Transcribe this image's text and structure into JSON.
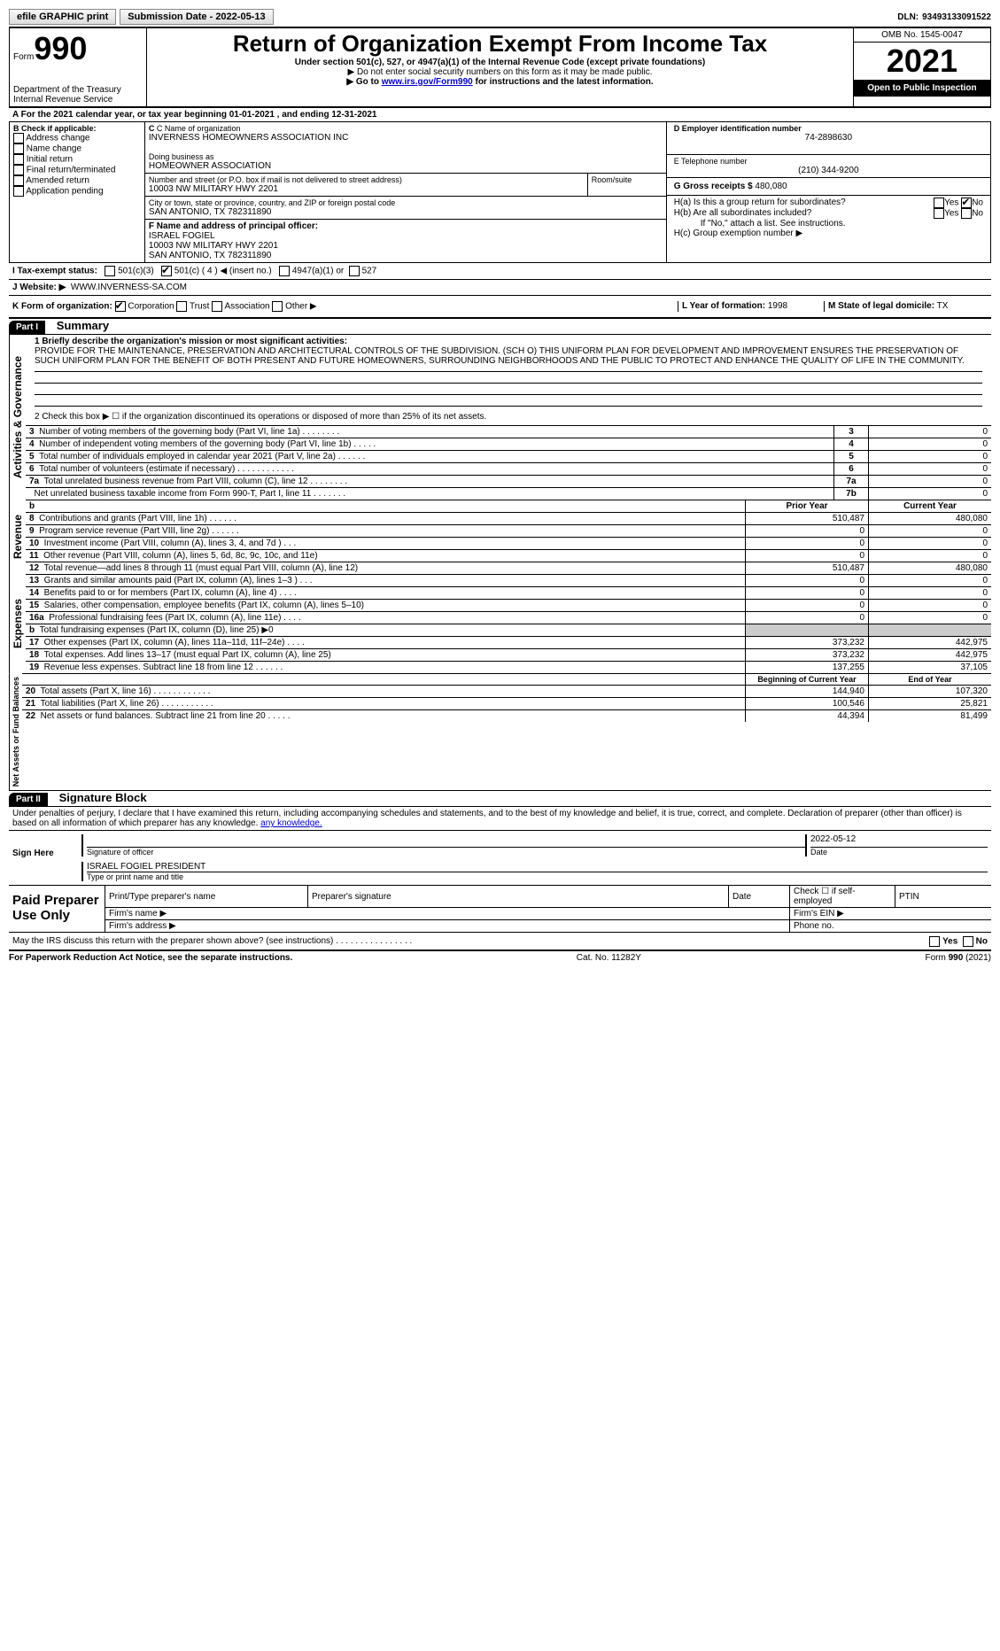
{
  "topbar": {
    "efile": "efile GRAPHIC print",
    "submission": "Submission Date - 2022-05-13",
    "dln_label": "DLN:",
    "dln": "93493133091522"
  },
  "header": {
    "form_label": "Form",
    "form_no": "990",
    "dept": "Department of the Treasury\nInternal Revenue Service",
    "title": "Return of Organization Exempt From Income Tax",
    "subtitle": "Under section 501(c), 527, or 4947(a)(1) of the Internal Revenue Code (except private foundations)",
    "arrow1": "▶ Do not enter social security numbers on this form as it may be made public.",
    "arrow2_pre": "▶ Go to ",
    "arrow2_link": "www.irs.gov/Form990",
    "arrow2_post": " for instructions and the latest information.",
    "omb": "OMB No. 1545-0047",
    "year": "2021",
    "open": "Open to Public Inspection"
  },
  "A": {
    "line": "For the 2021 calendar year, or tax year beginning 01-01-2021     , and ending 12-31-2021"
  },
  "B": {
    "label": "B Check if applicable:",
    "items": [
      "Address change",
      "Name change",
      "Initial return",
      "Final return/terminated",
      "Amended return",
      "Application pending"
    ]
  },
  "C": {
    "name_label": "C Name of organization",
    "name": "INVERNESS HOMEOWNERS ASSOCIATION INC",
    "dba_label": "Doing business as",
    "dba": "HOMEOWNER ASSOCIATION",
    "street_label": "Number and street (or P.O. box if mail is not delivered to street address)",
    "street": "10003 NW MILITARY HWY 2201",
    "room_label": "Room/suite",
    "city_label": "City or town, state or province, country, and ZIP or foreign postal code",
    "city": "SAN ANTONIO, TX  782311890"
  },
  "D": {
    "label": "D Employer identification number",
    "value": "74-2898630"
  },
  "E": {
    "label": "E Telephone number",
    "value": "(210) 344-9200"
  },
  "G": {
    "label": "G Gross receipts $",
    "value": "480,080"
  },
  "F": {
    "label": "F Name and address of principal officer:",
    "name": "ISRAEL FOGIEL",
    "addr1": "10003 NW MILITARY HWY 2201",
    "addr2": "SAN ANTONIO, TX  782311890"
  },
  "H": {
    "a": "H(a)  Is this a group return for subordinates?",
    "b": "H(b)  Are all subordinates included?",
    "b_note": "If \"No,\" attach a list. See instructions.",
    "c": "H(c)  Group exemption number ▶",
    "yes": "Yes",
    "no": "No"
  },
  "I": {
    "label": "I   Tax-exempt status:",
    "c3": "501(c)(3)",
    "c": "501(c) ( 4 ) ◀ (insert no.)",
    "a": "4947(a)(1) or",
    "s": "527"
  },
  "J": {
    "label": "J   Website: ▶",
    "value": "WWW.INVERNESS-SA.COM"
  },
  "K": {
    "label": "K Form of organization:",
    "corp": "Corporation",
    "trust": "Trust",
    "assoc": "Association",
    "other": "Other ▶"
  },
  "L": {
    "label": "L Year of formation:",
    "value": "1998"
  },
  "M": {
    "label": "M State of legal domicile:",
    "value": "TX"
  },
  "part1": {
    "title": "Part I",
    "name": "Summary",
    "q1_label": "1  Briefly describe the organization's mission or most significant activities:",
    "q1_text": "PROVIDE FOR THE MAINTENANCE, PRESERVATION AND ARCHITECTURAL CONTROLS OF THE SUBDIVISION. (SCH O) THIS UNIFORM PLAN FOR DEVELOPMENT AND IMPROVEMENT ENSURES THE PRESERVATION OF SUCH UNIFORM PLAN FOR THE BENEFIT OF BOTH PRESENT AND FUTURE HOMEOWNERS, SURROUNDING NEIGHBORHOODS AND THE PUBLIC TO PROTECT AND ENHANCE THE QUALITY OF LIFE IN THE COMMUNITY.",
    "q2": "2    Check this box ▶ ☐  if the organization discontinued its operations or disposed of more than 25% of its net assets.",
    "rows_gov": [
      {
        "n": "3",
        "t": "Number of voting members of the governing body (Part VI, line 1a)   .    .    .    .    .    .    .    .",
        "rn": "3",
        "v": "0"
      },
      {
        "n": "4",
        "t": "Number of independent voting members of the governing body (Part VI, line 1b)   .    .    .    .    .",
        "rn": "4",
        "v": "0"
      },
      {
        "n": "5",
        "t": "Total number of individuals employed in calendar year 2021 (Part V, line 2a)   .    .    .    .    .    .",
        "rn": "5",
        "v": "0"
      },
      {
        "n": "6",
        "t": "Total number of volunteers (estimate if necessary)   .    .    .    .    .    .    .    .    .    .    .    .",
        "rn": "6",
        "v": "0"
      },
      {
        "n": "7a",
        "t": "Total unrelated business revenue from Part VIII, column (C), line 12   .    .    .    .    .    .    .    .",
        "rn": "7a",
        "v": "0"
      },
      {
        "n": "",
        "t": "Net unrelated business taxable income from Form 990-T, Part I, line 11   .    .    .    .    .    .    .",
        "rn": "7b",
        "v": "0"
      }
    ],
    "col_prior": "Prior Year",
    "col_curr": "Current Year",
    "rows_rev": [
      {
        "n": "8",
        "t": "Contributions and grants (Part VIII, line 1h)   .    .    .    .    .    .",
        "p": "510,487",
        "c": "480,080"
      },
      {
        "n": "9",
        "t": "Program service revenue (Part VIII, line 2g)   .    .    .    .    .    .",
        "p": "0",
        "c": "0"
      },
      {
        "n": "10",
        "t": "Investment income (Part VIII, column (A), lines 3, 4, and 7d )   .    .    .",
        "p": "0",
        "c": "0"
      },
      {
        "n": "11",
        "t": "Other revenue (Part VIII, column (A), lines 5, 6d, 8c, 9c, 10c, and 11e)",
        "p": "0",
        "c": "0"
      },
      {
        "n": "12",
        "t": "Total revenue—add lines 8 through 11 (must equal Part VIII, column (A), line 12)",
        "p": "510,487",
        "c": "480,080"
      }
    ],
    "rows_exp": [
      {
        "n": "13",
        "t": "Grants and similar amounts paid (Part IX, column (A), lines 1–3 )  .    .    .",
        "p": "0",
        "c": "0"
      },
      {
        "n": "14",
        "t": "Benefits paid to or for members (Part IX, column (A), line 4)   .    .    .    .",
        "p": "0",
        "c": "0"
      },
      {
        "n": "15",
        "t": "Salaries, other compensation, employee benefits (Part IX, column (A), lines 5–10)",
        "p": "0",
        "c": "0"
      },
      {
        "n": "16a",
        "t": "Professional fundraising fees (Part IX, column (A), line 11e)   .    .    .    .",
        "p": "0",
        "c": "0"
      },
      {
        "n": "b",
        "t": "Total fundraising expenses (Part IX, column (D), line 25) ▶0",
        "p": "",
        "c": "",
        "shade": true
      },
      {
        "n": "17",
        "t": "Other expenses (Part IX, column (A), lines 11a–11d, 11f–24e)   .    .    .    .",
        "p": "373,232",
        "c": "442,975"
      },
      {
        "n": "18",
        "t": "Total expenses. Add lines 13–17 (must equal Part IX, column (A), line 25)",
        "p": "373,232",
        "c": "442,975"
      },
      {
        "n": "19",
        "t": "Revenue less expenses. Subtract line 18 from line 12   .    .    .    .    .    .",
        "p": "137,255",
        "c": "37,105"
      }
    ],
    "col_beg": "Beginning of Current Year",
    "col_end": "End of Year",
    "rows_net": [
      {
        "n": "20",
        "t": "Total assets (Part X, line 16)   .    .    .    .    .    .    .    .    .    .    .    .",
        "p": "144,940",
        "c": "107,320"
      },
      {
        "n": "21",
        "t": "Total liabilities (Part X, line 26)   .    .    .    .    .    .    .    .    .    .    .",
        "p": "100,546",
        "c": "25,821"
      },
      {
        "n": "22",
        "t": "Net assets or fund balances. Subtract line 21 from line 20   .    .    .    .    .",
        "p": "44,394",
        "c": "81,499"
      }
    ],
    "side_gov": "Activities & Governance",
    "side_rev": "Revenue",
    "side_exp": "Expenses",
    "side_net": "Net Assets or Fund Balances"
  },
  "part2": {
    "title": "Part II",
    "name": "Signature Block",
    "decl": "Under penalties of perjury, I declare that I have examined this return, including accompanying schedules and statements, and to the best of my knowledge and belief, it is true, correct, and complete. Declaration of preparer (other than officer) is based on all information of which preparer has any knowledge.",
    "sign_here": "Sign Here",
    "sig_officer": "Signature of officer",
    "date": "Date",
    "date_val": "2022-05-12",
    "name_title": "ISRAEL FOGIEL  PRESIDENT",
    "type_name": "Type or print name and title",
    "paid": "Paid Preparer Use Only",
    "pt_name": "Print/Type preparer's name",
    "pt_sig": "Preparer's signature",
    "pt_date": "Date",
    "pt_check": "Check ☐ if self-employed",
    "ptin": "PTIN",
    "firm_name": "Firm's name   ▶",
    "firm_ein": "Firm's EIN ▶",
    "firm_addr": "Firm's address ▶",
    "phone": "Phone no.",
    "may": "May the IRS discuss this return with the preparer shown above? (see instructions)   .    .    .    .    .    .    .    .    .    .    .    .    .    .    .    .",
    "yes": "Yes",
    "no": "No"
  },
  "footer": {
    "left": "For Paperwork Reduction Act Notice, see the separate instructions.",
    "mid": "Cat. No. 11282Y",
    "right": "Form 990 (2021)"
  }
}
